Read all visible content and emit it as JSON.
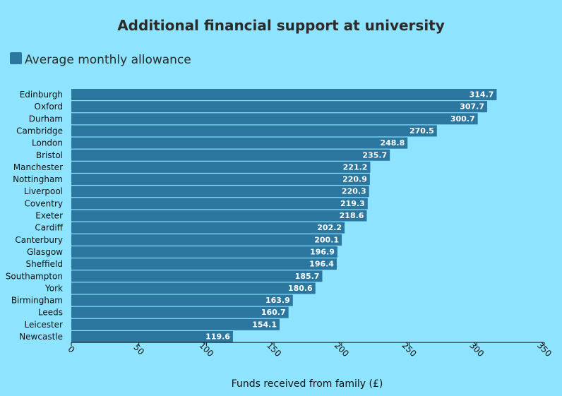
{
  "chart_data": {
    "type": "bar",
    "orientation": "horizontal",
    "title": "Additional financial support at university",
    "xlabel": "Funds received from family (£)",
    "ylabel": "",
    "xlim": [
      0,
      350
    ],
    "ticks": [
      0,
      50,
      100,
      150,
      200,
      250,
      300,
      350
    ],
    "legend_position": "top-left",
    "grid": false,
    "colors": {
      "bar": "#2b77a0",
      "background": "#8ee3ff"
    },
    "categories": [
      "Edinburgh",
      "Oxford",
      "Durham",
      "Cambridge",
      "London",
      "Bristol",
      "Manchester",
      "Nottingham",
      "Liverpool",
      "Coventry",
      "Exeter",
      "Cardiff",
      "Canterbury",
      "Glasgow",
      "Sheffield",
      "Southampton",
      "York",
      "Birmingham",
      "Leeds",
      "Leicester",
      "Newcastle"
    ],
    "series": [
      {
        "name": "Average monthly allowance",
        "values": [
          314.7,
          307.7,
          300.7,
          270.5,
          248.8,
          235.7,
          221.2,
          220.9,
          220.3,
          219.3,
          218.6,
          202.2,
          200.1,
          196.9,
          196.4,
          185.7,
          180.6,
          163.9,
          160.7,
          154.1,
          119.6
        ]
      }
    ]
  }
}
